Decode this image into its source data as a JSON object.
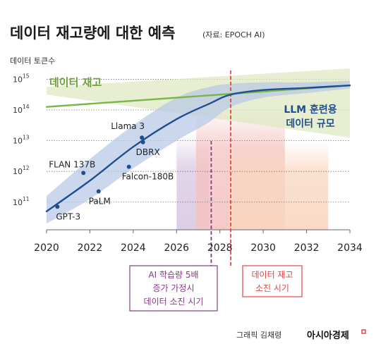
{
  "chart_data": {
    "type": "line",
    "title": "데이터 재고량에 대한 예측",
    "source": "(자료: EPOCH AI)",
    "ylabel": "데이터 토큰수",
    "yscale": "log",
    "yticks": [
      {
        "base": "10",
        "exp": "11",
        "value": 11
      },
      {
        "base": "10",
        "exp": "12",
        "value": 12
      },
      {
        "base": "10",
        "exp": "13",
        "value": 13
      },
      {
        "base": "10",
        "exp": "14",
        "value": 14
      },
      {
        "base": "10",
        "exp": "15",
        "value": 15
      }
    ],
    "xticks": [
      "2020",
      "2022",
      "2024",
      "2026",
      "2028",
      "2030",
      "2032",
      "2034"
    ],
    "xlim": [
      2020,
      2034
    ],
    "ylim_log10": [
      10.1,
      15.4
    ],
    "grid": true,
    "series": [
      {
        "name": "데이터 재고",
        "color": "#7ab648",
        "x": [
          2020,
          2034
        ],
        "y_log10": [
          14.1,
          14.8
        ],
        "band_low": [
          14.5,
          13.1
        ],
        "band_high": [
          14.75,
          15.35
        ]
      },
      {
        "name": "LLM 훈련용\n데이터 규모",
        "color": "#1f4f8f",
        "x": [
          2020,
          2022,
          2024,
          2026,
          2027.5,
          2028.5,
          2030,
          2032,
          2034
        ],
        "y_log10": [
          10.7,
          11.7,
          12.8,
          13.7,
          14.2,
          14.5,
          14.65,
          14.72,
          14.8
        ],
        "band_low": [
          10.3,
          11.1,
          12.1,
          13.0,
          13.6,
          14.1,
          14.4,
          14.55,
          14.7
        ],
        "band_high": [
          11.2,
          12.4,
          13.5,
          14.4,
          14.75,
          14.85,
          14.9,
          14.9,
          14.95
        ]
      }
    ],
    "points": [
      {
        "label": "GPT-3",
        "x": 2020.5,
        "y_log10": 10.85
      },
      {
        "label": "FLAN 137B",
        "x": 2021.7,
        "y_log10": 11.95
      },
      {
        "label": "PaLM",
        "x": 2022.4,
        "y_log10": 11.35
      },
      {
        "label": "Falcon-180B",
        "x": 2023.8,
        "y_log10": 12.15
      },
      {
        "label": "Llama 3",
        "x": 2024.4,
        "y_log10": 13.1
      },
      {
        "label": "DBRX",
        "x": 2024.45,
        "y_log10": 12.95
      }
    ],
    "annotations": [
      {
        "label": "AI 학습량 5배\n증가 가정시\n데이터 소진 시기",
        "x": 2027.6,
        "color": "#8a3b86"
      },
      {
        "label": "데이터 재고\n소진 시기",
        "x": 2028.5,
        "color": "#e04545"
      }
    ],
    "shaded_ranges": [
      {
        "from": 2026,
        "to": 2027.5,
        "color": "#d8c8e2"
      },
      {
        "from": 2026.9,
        "to": 2031,
        "color": "#f4c3c1"
      },
      {
        "from": 2028.4,
        "to": 2033,
        "color": "#f9d6c0"
      }
    ]
  },
  "credit": {
    "prefix": "그래픽 김채령",
    "brand": "아시아경제"
  }
}
